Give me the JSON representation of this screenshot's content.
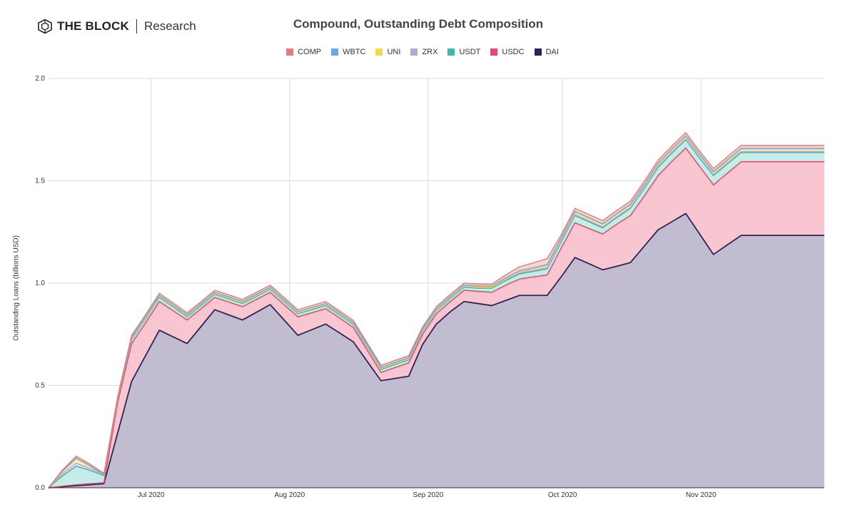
{
  "brand": {
    "name": "THE BLOCK",
    "sub": "Research",
    "icon": "block-logo-icon"
  },
  "chart_data": {
    "type": "area",
    "stacked": true,
    "title": "Compound, Outstanding Debt Composition",
    "ylabel": "Outstanding Loans (billions USD)",
    "xlabel": "",
    "ylim": [
      0,
      2.0
    ],
    "yticks": [
      "0.0",
      "0.5",
      "1.0",
      "1.5",
      "2.0"
    ],
    "xticks": [
      {
        "label": "Jul 2020",
        "x": 7.4
      },
      {
        "label": "Aug 2020",
        "x": 17.4
      },
      {
        "label": "Sep 2020",
        "x": 27.4
      },
      {
        "label": "Oct 2020",
        "x": 37.1
      },
      {
        "label": "Nov 2020",
        "x": 47.1
      }
    ],
    "grid": true,
    "legend_position": "top-center",
    "x": [
      0,
      1,
      2,
      3,
      4,
      5,
      6,
      7,
      8,
      9,
      10,
      11,
      12,
      13,
      14,
      15,
      16,
      17,
      18,
      19,
      20,
      21,
      22,
      23,
      24,
      25,
      26,
      27,
      28,
      29,
      30,
      31,
      32,
      33,
      34,
      35,
      36,
      37,
      38,
      39,
      40,
      41,
      42,
      43,
      44,
      45,
      46,
      47,
      48,
      49,
      50,
      51,
      52,
      53,
      54,
      55,
      56
    ],
    "series": [
      {
        "name": "DAI",
        "color": "#2b2458",
        "fill": "#c2bcd1",
        "values": [
          0.0,
          0.005,
          0.01,
          0.015,
          0.02,
          0.27,
          0.52,
          0.645,
          0.77,
          0.737,
          0.705,
          0.787,
          0.87,
          0.845,
          0.82,
          0.857,
          0.895,
          0.82,
          0.745,
          0.772,
          0.8,
          0.757,
          0.713,
          0.618,
          0.523,
          0.534,
          0.545,
          0.7,
          0.8,
          0.86,
          0.91,
          0.9,
          0.89,
          0.915,
          0.94,
          0.94,
          0.94,
          1.03,
          1.125,
          1.095,
          1.065,
          1.082,
          1.1,
          1.18,
          1.26,
          1.3,
          1.34,
          1.24,
          1.14,
          1.187,
          1.233,
          1.233,
          1.233,
          1.233,
          1.233,
          1.233,
          1.233
        ]
      },
      {
        "name": "USDC",
        "color": "#e8466e",
        "fill": "#f7c6d1",
        "values": [
          0.0,
          0.003,
          0.005,
          0.005,
          0.005,
          0.15,
          0.185,
          0.16,
          0.14,
          0.128,
          0.115,
          0.087,
          0.06,
          0.063,
          0.065,
          0.063,
          0.06,
          0.075,
          0.09,
          0.083,
          0.075,
          0.073,
          0.07,
          0.055,
          0.04,
          0.053,
          0.065,
          0.05,
          0.05,
          0.05,
          0.055,
          0.06,
          0.065,
          0.075,
          0.08,
          0.09,
          0.1,
          0.14,
          0.17,
          0.172,
          0.175,
          0.205,
          0.23,
          0.245,
          0.265,
          0.295,
          0.32,
          0.33,
          0.34,
          0.35,
          0.36,
          0.36,
          0.36,
          0.36,
          0.36,
          0.36,
          0.36
        ]
      },
      {
        "name": "USDT",
        "color": "#3fb6a8",
        "fill": "#c5ece6",
        "values": [
          0.0,
          0.05,
          0.09,
          0.065,
          0.035,
          0.015,
          0.02,
          0.02,
          0.02,
          0.018,
          0.015,
          0.015,
          0.015,
          0.015,
          0.015,
          0.015,
          0.015,
          0.015,
          0.015,
          0.015,
          0.015,
          0.015,
          0.015,
          0.015,
          0.015,
          0.015,
          0.015,
          0.015,
          0.015,
          0.015,
          0.015,
          0.015,
          0.02,
          0.022,
          0.025,
          0.027,
          0.03,
          0.03,
          0.035,
          0.033,
          0.03,
          0.032,
          0.035,
          0.037,
          0.04,
          0.04,
          0.04,
          0.04,
          0.045,
          0.045,
          0.045,
          0.045,
          0.045,
          0.045,
          0.045,
          0.045,
          0.045
        ]
      },
      {
        "name": "ZRX",
        "color": "#b3a9d8",
        "fill": "#e4e0f3",
        "values": [
          0.0,
          0.01,
          0.015,
          0.01,
          0.005,
          0.005,
          0.005,
          0.005,
          0.005,
          0.005,
          0.005,
          0.005,
          0.005,
          0.005,
          0.005,
          0.005,
          0.005,
          0.005,
          0.005,
          0.005,
          0.005,
          0.005,
          0.005,
          0.005,
          0.005,
          0.005,
          0.005,
          0.005,
          0.005,
          0.005,
          0.005,
          0.005,
          0.005,
          0.005,
          0.005,
          0.005,
          0.005,
          0.005,
          0.005,
          0.005,
          0.005,
          0.005,
          0.005,
          0.005,
          0.005,
          0.005,
          0.005,
          0.005,
          0.005,
          0.005,
          0.005,
          0.005,
          0.005,
          0.005,
          0.005,
          0.005,
          0.005
        ]
      },
      {
        "name": "UNI",
        "color": "#f2d94e",
        "fill": "#fbf1c0",
        "values": [
          0.0,
          0.01,
          0.02,
          0.01,
          0.0,
          0.0,
          0.0,
          0.0,
          0.0,
          0.0,
          0.0,
          0.0,
          0.0,
          0.0,
          0.0,
          0.0,
          0.0,
          0.0,
          0.0,
          0.0,
          0.0,
          0.0,
          0.0,
          0.0,
          0.0,
          0.0,
          0.0,
          0.0,
          0.0,
          0.0,
          0.0,
          0.0,
          0.0,
          0.003,
          0.005,
          0.007,
          0.01,
          0.01,
          0.01,
          0.01,
          0.01,
          0.01,
          0.01,
          0.01,
          0.01,
          0.01,
          0.01,
          0.01,
          0.01,
          0.01,
          0.01,
          0.01,
          0.01,
          0.01,
          0.01,
          0.01,
          0.01
        ]
      },
      {
        "name": "WBTC",
        "color": "#6fa8e6",
        "fill": "#d3e5f7",
        "values": [
          0.0,
          0.003,
          0.005,
          0.003,
          0.0,
          0.003,
          0.005,
          0.005,
          0.005,
          0.005,
          0.005,
          0.005,
          0.005,
          0.005,
          0.005,
          0.005,
          0.005,
          0.005,
          0.005,
          0.005,
          0.005,
          0.005,
          0.005,
          0.005,
          0.005,
          0.005,
          0.005,
          0.005,
          0.005,
          0.005,
          0.005,
          0.005,
          0.005,
          0.005,
          0.005,
          0.005,
          0.005,
          0.005,
          0.005,
          0.005,
          0.005,
          0.005,
          0.005,
          0.005,
          0.005,
          0.005,
          0.005,
          0.005,
          0.005,
          0.005,
          0.005,
          0.005,
          0.005,
          0.005,
          0.005,
          0.005,
          0.005
        ]
      },
      {
        "name": "COMP",
        "color": "#e0807a",
        "fill": "#f6d4d1",
        "values": [
          0.0,
          0.005,
          0.01,
          0.007,
          0.005,
          0.005,
          0.01,
          0.01,
          0.01,
          0.01,
          0.01,
          0.01,
          0.01,
          0.01,
          0.01,
          0.01,
          0.01,
          0.01,
          0.01,
          0.01,
          0.01,
          0.01,
          0.01,
          0.01,
          0.01,
          0.01,
          0.01,
          0.01,
          0.01,
          0.01,
          0.01,
          0.01,
          0.01,
          0.015,
          0.02,
          0.025,
          0.03,
          0.015,
          0.015,
          0.015,
          0.015,
          0.015,
          0.015,
          0.015,
          0.015,
          0.015,
          0.015,
          0.015,
          0.015,
          0.015,
          0.015,
          0.015,
          0.015,
          0.015,
          0.015,
          0.015,
          0.015
        ]
      }
    ]
  }
}
